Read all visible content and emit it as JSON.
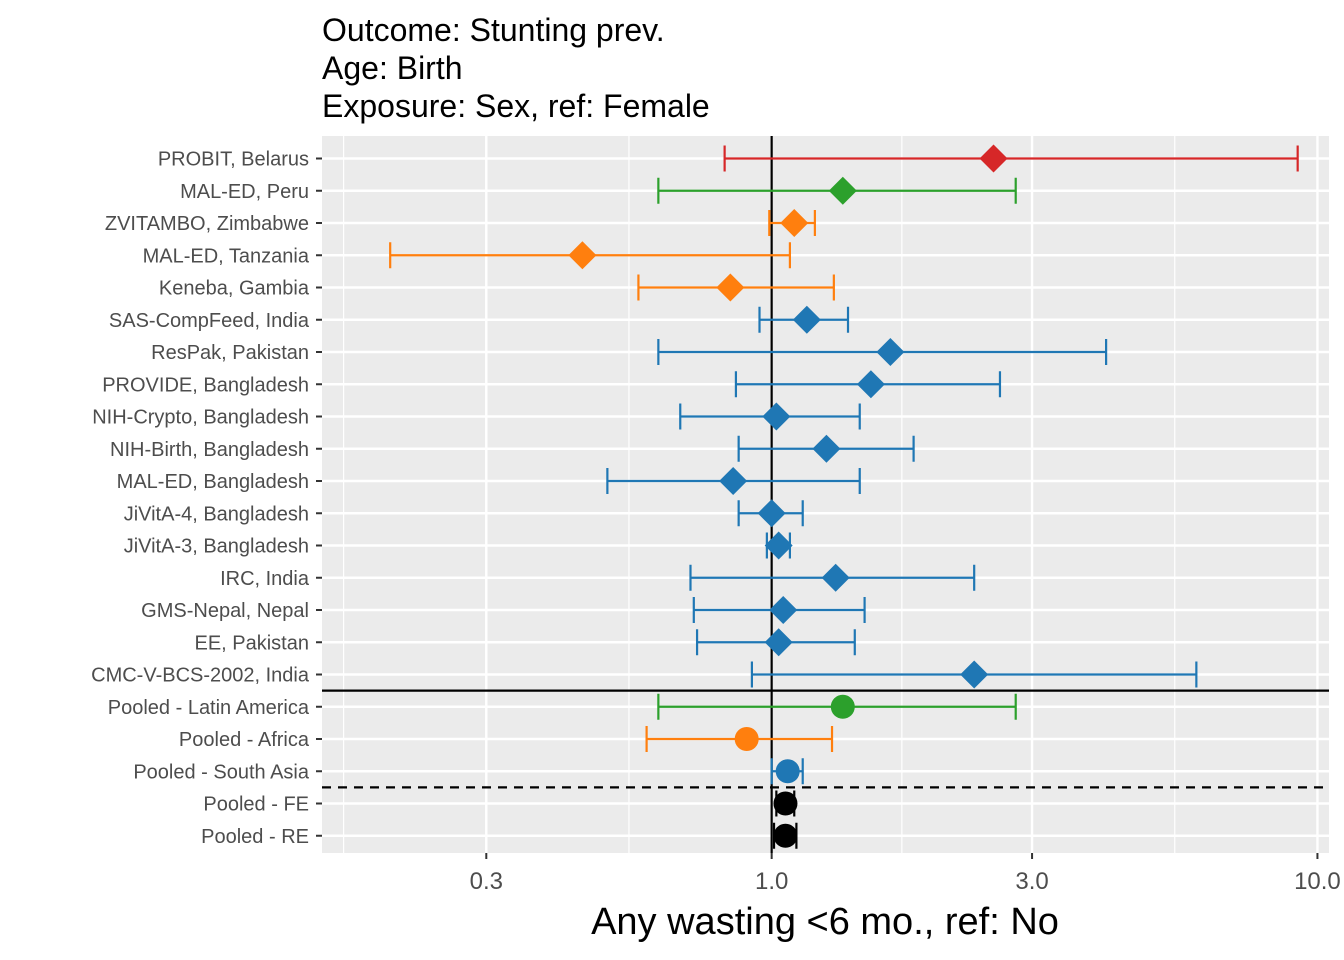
{
  "chart_data": {
    "type": "forest",
    "title_lines": [
      "Outcome: Stunting prev.",
      "Age: Birth",
      "Exposure: Sex, ref: Female"
    ],
    "xlabel": "Any wasting  <6 mo., ref: No",
    "x_scale": "log10",
    "xlim": [
      0.15,
      10.5
    ],
    "x_ticks": [
      0.3,
      1.0,
      3.0,
      10.0
    ],
    "x_tick_labels": [
      "0.3",
      "1.0",
      "3.0",
      "10.0"
    ],
    "grid": true,
    "reference_line": 1.0,
    "colors": {
      "red": "#d62728",
      "green": "#2ca02c",
      "orange": "#ff7f0e",
      "blue": "#1f77b4",
      "black": "#000000",
      "panel": "#ebebeb"
    },
    "rows": [
      {
        "label": "PROBIT, Belarus",
        "est": 2.55,
        "lo": 0.82,
        "hi": 9.2,
        "color": "red",
        "shape": "diamond"
      },
      {
        "label": "MAL-ED, Peru",
        "est": 1.35,
        "lo": 0.62,
        "hi": 2.8,
        "color": "green",
        "shape": "diamond"
      },
      {
        "label": "ZVITAMBO, Zimbabwe",
        "est": 1.1,
        "lo": 0.99,
        "hi": 1.2,
        "color": "orange",
        "shape": "diamond"
      },
      {
        "label": "MAL-ED, Tanzania",
        "est": 0.45,
        "lo": 0.2,
        "hi": 1.08,
        "color": "orange",
        "shape": "diamond"
      },
      {
        "label": "Keneba, Gambia",
        "est": 0.84,
        "lo": 0.57,
        "hi": 1.3,
        "color": "orange",
        "shape": "diamond"
      },
      {
        "label": "SAS-CompFeed, India",
        "est": 1.16,
        "lo": 0.95,
        "hi": 1.38,
        "color": "blue",
        "shape": "diamond"
      },
      {
        "label": "ResPak, Pakistan",
        "est": 1.65,
        "lo": 0.62,
        "hi": 4.1,
        "color": "blue",
        "shape": "diamond"
      },
      {
        "label": "PROVIDE, Bangladesh",
        "est": 1.52,
        "lo": 0.86,
        "hi": 2.62,
        "color": "blue",
        "shape": "diamond"
      },
      {
        "label": "NIH-Crypto, Bangladesh",
        "est": 1.02,
        "lo": 0.68,
        "hi": 1.45,
        "color": "blue",
        "shape": "diamond"
      },
      {
        "label": "NIH-Birth, Bangladesh",
        "est": 1.26,
        "lo": 0.87,
        "hi": 1.82,
        "color": "blue",
        "shape": "diamond"
      },
      {
        "label": "MAL-ED, Bangladesh",
        "est": 0.85,
        "lo": 0.5,
        "hi": 1.45,
        "color": "blue",
        "shape": "diamond"
      },
      {
        "label": "JiVitA-4, Bangladesh",
        "est": 1.0,
        "lo": 0.87,
        "hi": 1.14,
        "color": "blue",
        "shape": "diamond"
      },
      {
        "label": "JiVitA-3, Bangladesh",
        "est": 1.03,
        "lo": 0.98,
        "hi": 1.08,
        "color": "blue",
        "shape": "diamond"
      },
      {
        "label": "IRC, India",
        "est": 1.31,
        "lo": 0.71,
        "hi": 2.35,
        "color": "blue",
        "shape": "diamond"
      },
      {
        "label": "GMS-Nepal, Nepal",
        "est": 1.05,
        "lo": 0.72,
        "hi": 1.48,
        "color": "blue",
        "shape": "diamond"
      },
      {
        "label": "EE, Pakistan",
        "est": 1.03,
        "lo": 0.73,
        "hi": 1.42,
        "color": "blue",
        "shape": "diamond"
      },
      {
        "label": "CMC-V-BCS-2002, India",
        "est": 2.35,
        "lo": 0.92,
        "hi": 6.0,
        "color": "blue",
        "shape": "diamond"
      },
      {
        "label": "Pooled - Latin America",
        "est": 1.35,
        "lo": 0.62,
        "hi": 2.8,
        "color": "green",
        "shape": "circle"
      },
      {
        "label": "Pooled - Africa",
        "est": 0.9,
        "lo": 0.59,
        "hi": 1.29,
        "color": "orange",
        "shape": "circle"
      },
      {
        "label": "Pooled - South Asia",
        "est": 1.07,
        "lo": 1.0,
        "hi": 1.14,
        "color": "blue",
        "shape": "circle"
      },
      {
        "label": "Pooled - FE",
        "est": 1.06,
        "lo": 1.02,
        "hi": 1.1,
        "color": "black",
        "shape": "circle"
      },
      {
        "label": "Pooled - RE",
        "est": 1.06,
        "lo": 1.01,
        "hi": 1.11,
        "color": "black",
        "shape": "circle"
      }
    ],
    "separators": [
      {
        "after_row": 16,
        "style": "solid"
      },
      {
        "after_row": 19,
        "style": "dashed"
      }
    ]
  }
}
